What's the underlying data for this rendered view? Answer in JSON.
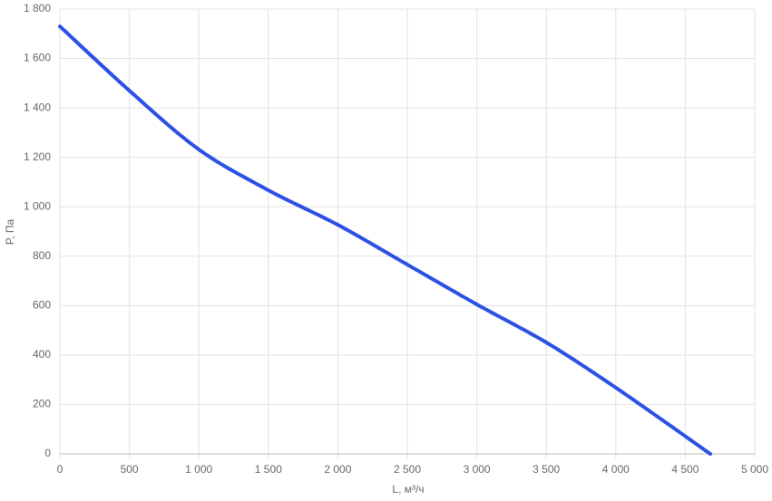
{
  "chart_data": {
    "type": "line",
    "x_label": "L, м³/ч",
    "y_label": "P, Па",
    "x": [
      0,
      500,
      1000,
      1500,
      2000,
      2500,
      3000,
      3500,
      4000,
      4680
    ],
    "series": [
      {
        "name": "P",
        "color": "#2a50e4",
        "values": [
          1730,
          1470,
          1232,
          1067,
          927,
          766,
          605,
          451,
          268,
          0
        ]
      }
    ],
    "xlim": [
      0,
      5000
    ],
    "xticks": [
      0,
      500,
      {
        "value": 1000,
        "label": "1 000"
      },
      {
        "value": 1500,
        "label": "1 500"
      },
      {
        "value": 2000,
        "label": "2 000"
      },
      {
        "value": 2500,
        "label": "2 500"
      },
      {
        "value": 3000,
        "label": "3 000"
      },
      {
        "value": 3500,
        "label": "3 500"
      },
      {
        "value": 4000,
        "label": "4 000"
      },
      {
        "value": 4500,
        "label": "4 500"
      },
      {
        "value": 5000,
        "label": "5 000"
      }
    ],
    "ylim": [
      0,
      1800
    ],
    "yticks": [
      0,
      200,
      400,
      600,
      800,
      {
        "value": 1000,
        "label": "1 000"
      },
      {
        "value": 1200,
        "label": "1 200"
      },
      {
        "value": 1400,
        "label": "1 400"
      },
      {
        "value": 1600,
        "label": "1 600"
      },
      {
        "value": 1800,
        "label": "1 800"
      }
    ],
    "grid": true
  }
}
